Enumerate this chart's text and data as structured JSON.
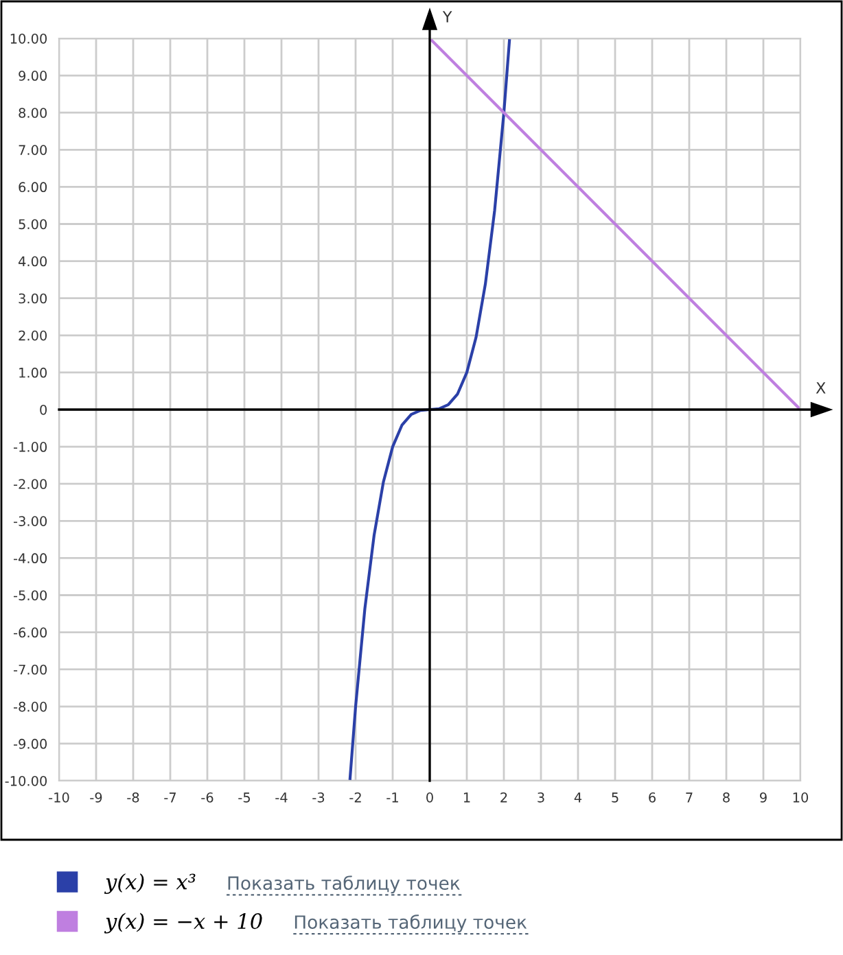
{
  "chart_data": {
    "type": "line",
    "xlabel": "X",
    "ylabel": "Y",
    "series": [
      {
        "name": "y(x) = x³",
        "color": "#2b40a8",
        "x": [
          -2.15,
          -2,
          -1.75,
          -1.5,
          -1.25,
          -1,
          -0.75,
          -0.5,
          -0.25,
          0,
          0.25,
          0.5,
          0.75,
          1,
          1.25,
          1.5,
          1.75,
          2,
          2.15
        ],
        "values": [
          -9.94,
          -8,
          -5.36,
          -3.38,
          -1.95,
          -1,
          -0.42,
          -0.13,
          -0.02,
          0,
          0.02,
          0.13,
          0.42,
          1,
          1.95,
          3.38,
          5.36,
          8,
          9.94
        ]
      },
      {
        "name": "y(x) = −x + 10",
        "color": "#bf7fe0",
        "x": [
          0,
          10
        ],
        "values": [
          10,
          0
        ]
      }
    ],
    "xlim": [
      -10,
      10
    ],
    "ylim": [
      -10,
      10
    ],
    "xticks": [
      -10,
      -9,
      -8,
      -7,
      -6,
      -5,
      -4,
      -3,
      -2,
      -1,
      0,
      1,
      2,
      3,
      4,
      5,
      6,
      7,
      8,
      9,
      10
    ],
    "yticks": [
      {
        "value": -10,
        "label": "-10.00"
      },
      {
        "value": -9,
        "label": "-9.00"
      },
      {
        "value": -8,
        "label": "-8.00"
      },
      {
        "value": -7,
        "label": "-7.00"
      },
      {
        "value": -6,
        "label": "-6.00"
      },
      {
        "value": -5,
        "label": "-5.00"
      },
      {
        "value": -4,
        "label": "-4.00"
      },
      {
        "value": -3,
        "label": "-3.00"
      },
      {
        "value": -2,
        "label": "-2.00"
      },
      {
        "value": -1,
        "label": "-1.00"
      },
      0,
      {
        "value": 1,
        "label": "1.00"
      },
      {
        "value": 2,
        "label": "2.00"
      },
      {
        "value": 3,
        "label": "3.00"
      },
      {
        "value": 4,
        "label": "4.00"
      },
      {
        "value": 5,
        "label": "5.00"
      },
      {
        "value": 6,
        "label": "6.00"
      },
      {
        "value": 7,
        "label": "7.00"
      },
      {
        "value": 8,
        "label": "8.00"
      },
      {
        "value": 9,
        "label": "9.00"
      },
      {
        "value": 10,
        "label": "10.00"
      }
    ],
    "grid": true,
    "legend": "bottom",
    "marker": "none",
    "line_style": "solid",
    "annotations": [
      "Показать таблицу точек",
      "Показать таблицу точек"
    ]
  }
}
